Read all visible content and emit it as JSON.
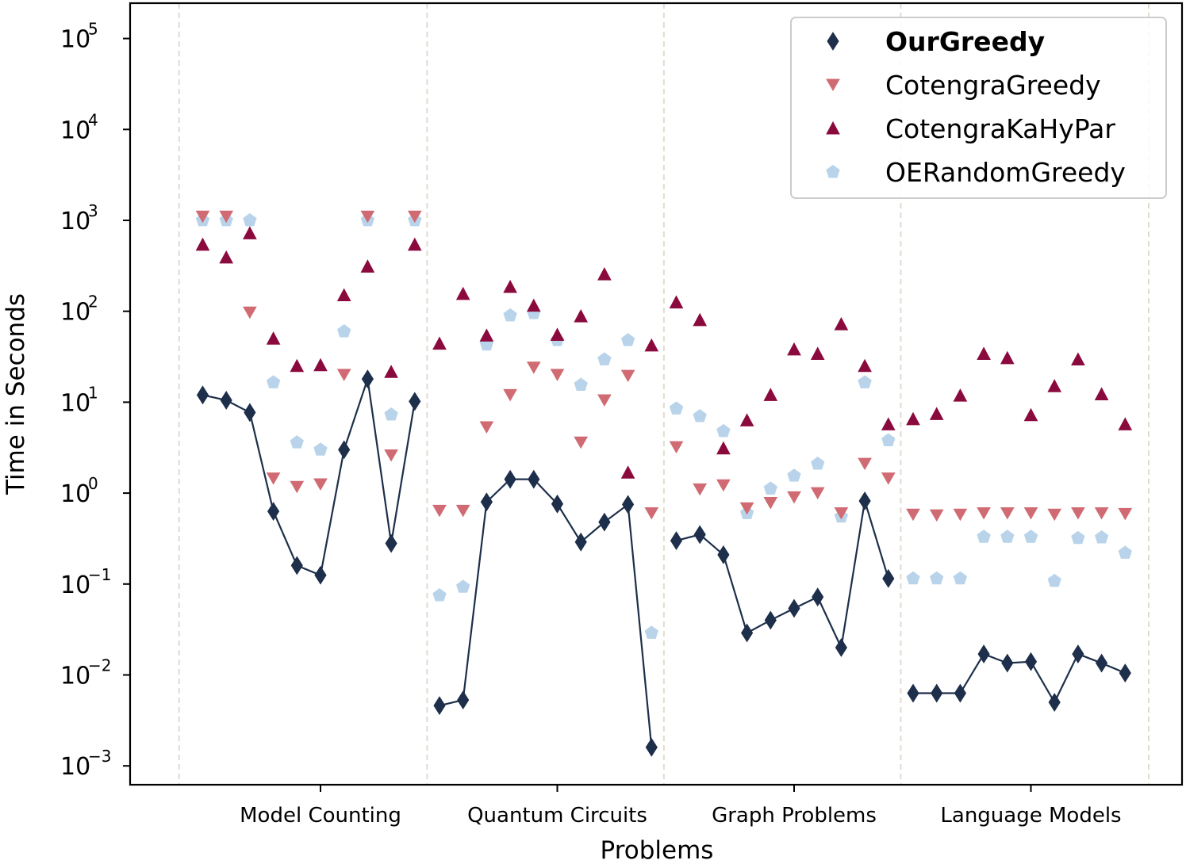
{
  "chart_data": {
    "type": "scatter",
    "title": "",
    "xlabel": "Problems",
    "ylabel": "Time in Seconds",
    "yscale": "log",
    "ylim": [
      0.0005,
      200000
    ],
    "y_ticks": [
      {
        "value": 0.001,
        "base": "10",
        "exp": "−3"
      },
      {
        "value": 0.01,
        "base": "10",
        "exp": "−2"
      },
      {
        "value": 0.1,
        "base": "10",
        "exp": "−1"
      },
      {
        "value": 1,
        "base": "10",
        "exp": "0"
      },
      {
        "value": 10,
        "base": "10",
        "exp": "1"
      },
      {
        "value": 100,
        "base": "10",
        "exp": "2"
      },
      {
        "value": 1000,
        "base": "10",
        "exp": "3"
      },
      {
        "value": 10000,
        "base": "10",
        "exp": "4"
      },
      {
        "value": 100000,
        "base": "10",
        "exp": "5"
      }
    ],
    "categories": [
      "Model Counting",
      "Quantum Circuits",
      "Graph Problems",
      "Language Models"
    ],
    "instances_per_category": 10,
    "legend_position": "top-right",
    "series": [
      {
        "name": "OurGreedy",
        "marker": "diamond",
        "color": "#1d2f4a",
        "line": true,
        "bold": true,
        "values": [
          [
            12,
            10.5,
            7.7,
            0.63,
            0.16,
            0.125,
            3.0,
            18,
            0.28,
            10.2
          ],
          [
            0.0046,
            0.0053,
            0.8,
            1.42,
            1.42,
            0.76,
            0.29,
            0.48,
            0.75,
            0.0016
          ],
          [
            0.3,
            0.35,
            0.21,
            0.029,
            0.04,
            0.054,
            0.072,
            0.02,
            0.82,
            0.115
          ],
          [
            0.0063,
            0.0063,
            0.0063,
            0.017,
            0.0135,
            0.014,
            0.005,
            0.017,
            0.0135,
            0.0105
          ]
        ]
      },
      {
        "name": "CotengraGreedy",
        "marker": "triangle-down",
        "color": "#d06b73",
        "line": false,
        "bold": false,
        "values": [
          [
            1100,
            1100,
            97,
            1.45,
            1.17,
            1.25,
            20,
            1100,
            2.6,
            1100
          ],
          [
            0.64,
            0.64,
            5.3,
            12,
            24,
            20,
            3.6,
            10.5,
            19.5,
            0.6
          ],
          [
            3.2,
            1.1,
            1.22,
            0.68,
            0.78,
            0.9,
            1.0,
            0.6,
            2.1,
            1.45
          ],
          [
            0.58,
            0.57,
            0.58,
            0.6,
            0.6,
            0.6,
            0.58,
            0.6,
            0.6,
            0.59
          ]
        ]
      },
      {
        "name": "CotengraKaHyPar",
        "marker": "triangle-up",
        "color": "#8b0a3e",
        "line": false,
        "bold": false,
        "values": [
          [
            540,
            390,
            720,
            50,
            25,
            25.5,
            150,
            310,
            21.5,
            540
          ],
          [
            44,
            155,
            54,
            185,
            115,
            55,
            88,
            255,
            1.68,
            42
          ],
          [
            125,
            80,
            3.1,
            6.3,
            12,
            38,
            34,
            72,
            25,
            5.7
          ],
          [
            6.5,
            7.4,
            11.8,
            34,
            30.5,
            7.2,
            15,
            29.5,
            12.2,
            5.7
          ]
        ]
      },
      {
        "name": "OERandomGreedy",
        "marker": "pentagon",
        "color": "#b9d4ea",
        "line": false,
        "bold": false,
        "values": [
          [
            1000,
            1000,
            1000,
            16.5,
            3.6,
            3.0,
            60,
            1000,
            7.3,
            1000
          ],
          [
            0.075,
            0.093,
            43,
            90,
            95,
            48,
            15.5,
            29.5,
            48,
            0.029
          ],
          [
            8.5,
            7.0,
            4.8,
            0.6,
            1.12,
            1.55,
            2.1,
            0.55,
            16.5,
            3.8
          ],
          [
            0.115,
            0.115,
            0.115,
            0.33,
            0.33,
            0.33,
            0.108,
            0.32,
            0.325,
            0.22
          ]
        ]
      }
    ]
  }
}
